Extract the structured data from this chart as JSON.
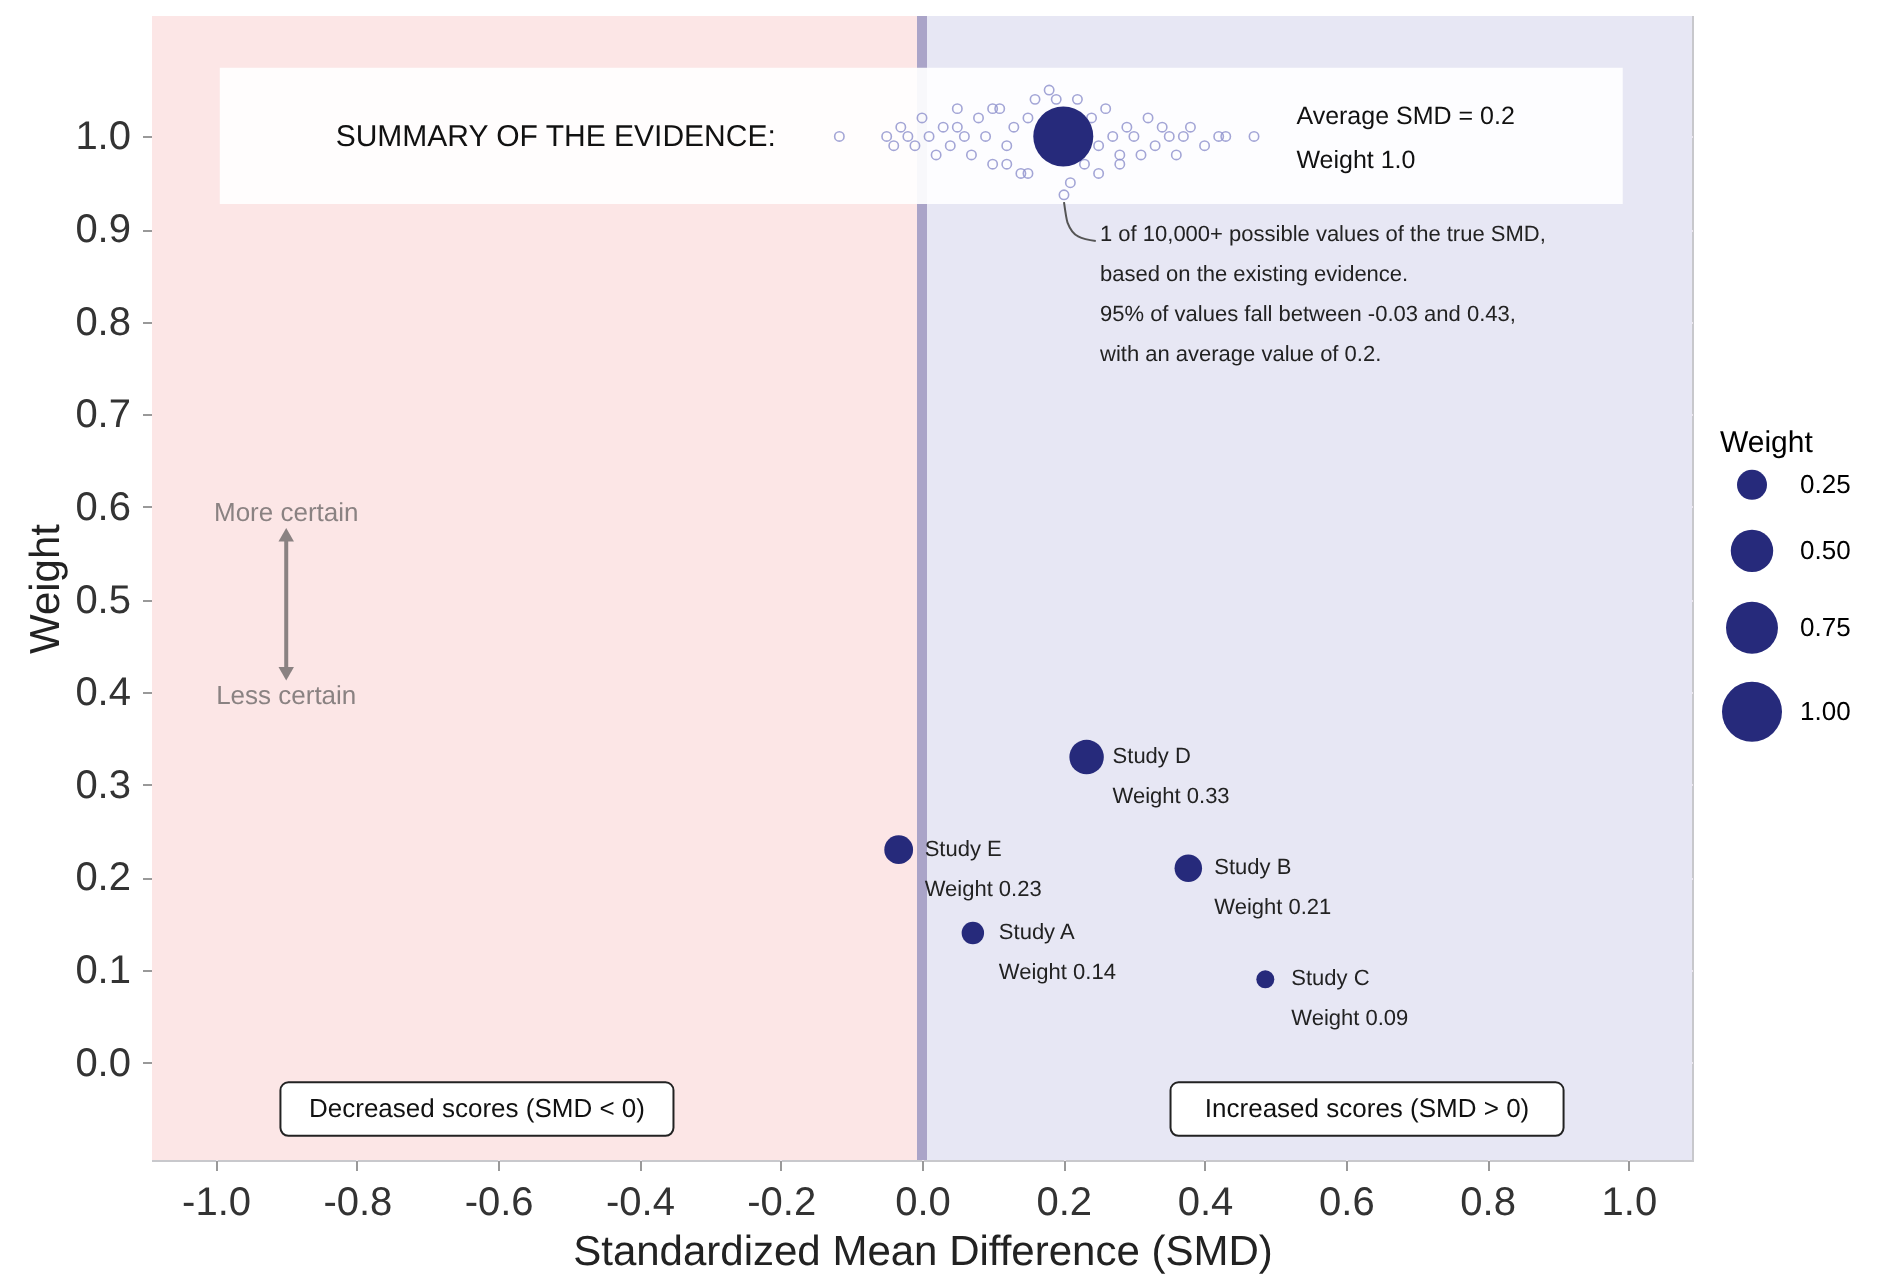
{
  "chart_data": {
    "type": "bubble",
    "xlabel": "Standardized Mean Difference (SMD)",
    "ylabel": "Weight",
    "legend_title": "Weight",
    "xlim": [
      -1.09,
      1.09
    ],
    "ylim": [
      -0.105,
      1.13
    ],
    "xticks": [
      {
        "value": -1,
        "label": "-1.0"
      },
      {
        "value": -0.8,
        "label": "-0.8"
      },
      {
        "value": -0.6,
        "label": "-0.6"
      },
      {
        "value": -0.4,
        "label": "-0.4"
      },
      {
        "value": -0.2,
        "label": "-0.2"
      },
      {
        "value": 0,
        "label": "0.0"
      },
      {
        "value": 0.2,
        "label": "0.2"
      },
      {
        "value": 0.4,
        "label": "0.4"
      },
      {
        "value": 0.6,
        "label": "0.6"
      },
      {
        "value": 0.8,
        "label": "0.8"
      },
      {
        "value": 1,
        "label": "1.0"
      }
    ],
    "yticks": [
      {
        "value": 0,
        "label": "0.0"
      },
      {
        "value": 0.1,
        "label": "0.1"
      },
      {
        "value": 0.2,
        "label": "0.2"
      },
      {
        "value": 0.3,
        "label": "0.3"
      },
      {
        "value": 0.4,
        "label": "0.4"
      },
      {
        "value": 0.5,
        "label": "0.5"
      },
      {
        "value": 0.6,
        "label": "0.6"
      },
      {
        "value": 0.7,
        "label": "0.7"
      },
      {
        "value": 0.8,
        "label": "0.8"
      },
      {
        "value": 0.9,
        "label": "0.9"
      },
      {
        "value": 1,
        "label": "1.0"
      }
    ],
    "grid": true,
    "size_legend": [
      0.25,
      {
        "value": 0.5,
        "label": "0.50"
      },
      0.75,
      {
        "value": 1.0,
        "label": "1.00"
      }
    ],
    "bands": [
      {
        "axis": "x",
        "from": -1.09,
        "to": 0,
        "color": "#fce6e6"
      },
      {
        "axis": "x",
        "from": 0,
        "to": 1.09,
        "color": "#e7e7f4"
      },
      {
        "axis": "y",
        "from": 0.927,
        "to": 1.074,
        "color": "#ffffff"
      }
    ],
    "ref_lines": [
      {
        "axis": "x",
        "value": 0,
        "color": "#aaa4c8"
      }
    ],
    "series": [
      {
        "type": "scatter",
        "marker": "circle",
        "color": "#8d90cc",
        "x": [
          -0.117,
          -0.05,
          -0.04,
          -0.03,
          -0.02,
          -0.01,
          0.0,
          0.01,
          0.02,
          0.03,
          0.04,
          0.05,
          0.06,
          0.07,
          0.08,
          0.09,
          0.1,
          0.11,
          0.12,
          0.13,
          0.14,
          0.15,
          0.16,
          0.17,
          0.19,
          0.21,
          0.23,
          0.24,
          0.25,
          0.26,
          0.27,
          0.28,
          0.29,
          0.3,
          0.31,
          0.32,
          0.33,
          0.34,
          0.35,
          0.36,
          0.37,
          0.38,
          0.4,
          0.42,
          0.43,
          0.47,
          0.12,
          0.15,
          0.201,
          0.25,
          0.28,
          0.18,
          0.1,
          0.05,
          0.22
        ],
        "values": [
          1.0,
          1.0,
          0.99,
          1.01,
          1.0,
          0.99,
          1.02,
          1.0,
          0.98,
          1.01,
          0.99,
          1.01,
          1.0,
          0.98,
          1.02,
          1.0,
          0.97,
          1.03,
          0.99,
          1.01,
          0.96,
          1.02,
          1.04,
          null,
          1.04,
          0.95,
          0.97,
          1.02,
          0.99,
          1.03,
          1.0,
          0.98,
          1.01,
          1.0,
          0.98,
          1.02,
          0.99,
          1.01,
          1.0,
          0.98,
          1.0,
          1.01,
          0.99,
          1.0,
          1.0,
          1.0,
          0.97,
          0.96,
          0.937,
          0.96,
          0.97,
          1.05,
          1.03,
          1.03,
          1.04
        ]
      },
      {
        "color": "#262a7b",
        "x": [
          0.2
        ],
        "values": [
          1.0
        ],
        "sizes": [
          1.0
        ]
      },
      {
        "color": "#262a7b",
        "x": [
          0.072,
          0.377,
          0.486,
          0.233,
          -0.033
        ],
        "values": [
          0.14,
          0.21,
          0.09,
          0.33,
          0.23
        ],
        "sizes": [
          0.14,
          0.21,
          0.09,
          0.33,
          0.23
        ]
      }
    ],
    "annotations": [
      "SUMMARY OF THE EVIDENCE:",
      "Average SMD = 0.2",
      "Weight 1.0",
      {
        "text": "1 of 10,000+ possible values of the true SMD,\nbased on the existing evidence.\n95% of values fall between -0.03 and 0.43,\nwith an average value of 0.2.",
        "x": 0.201,
        "y": 0.937
      },
      "More certain",
      "Less certain",
      "Decreased scores (SMD < 0)",
      "Increased scores (SMD > 0)",
      {
        "text": "Study A\nWeight 0.14",
        "x": 0.072,
        "y": 0.14
      },
      {
        "text": "Study B\nWeight 0.21",
        "x": 0.377,
        "y": 0.21
      },
      {
        "text": "Study C\nWeight 0.09",
        "x": 0.486,
        "y": 0.09
      },
      {
        "text": "Study D\nWeight 0.33",
        "x": 0.233,
        "y": 0.33
      },
      {
        "text": "Study E\nWeight 0.23",
        "x": -0.033,
        "y": 0.23
      }
    ]
  }
}
